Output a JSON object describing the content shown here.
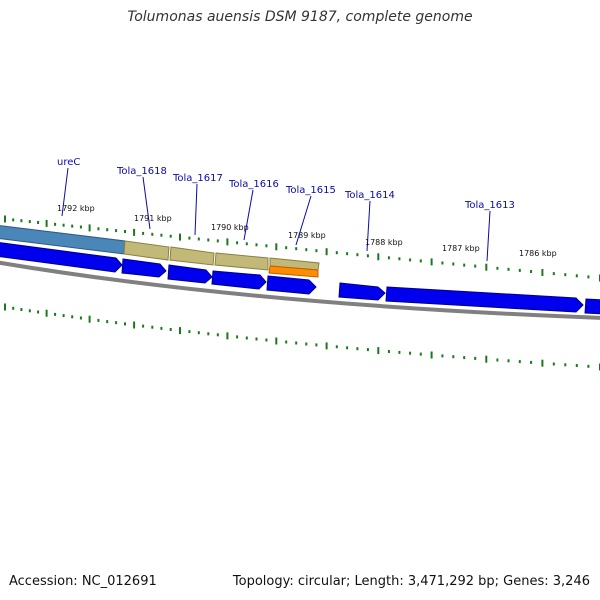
{
  "title": "Tolumonas auensis DSM 9187, complete genome",
  "footer": {
    "accession": "Accession: NC_012691",
    "topology": "Topology: circular; Length: 3,471,292 bp; Genes: 3,246"
  },
  "colors": {
    "cds": "#0000ee",
    "gene_tan": "#c2b878",
    "gene_steel": "#4a86b8",
    "gene_orange": "#ff8c00",
    "tick": "#1a7a1a",
    "backbone": "#808080",
    "label": "#0a0aaa"
  },
  "kbp_labels": [
    "1792 kbp",
    "1791 kbp",
    "1790 kbp",
    "1789 kbp",
    "1788 kbp",
    "1787 kbp",
    "1786 kbp"
  ],
  "gene_labels": [
    "ureC",
    "Tola_1618",
    "Tola_1617",
    "Tola_1616",
    "Tola_1615",
    "Tola_1614",
    "Tola_1613"
  ]
}
